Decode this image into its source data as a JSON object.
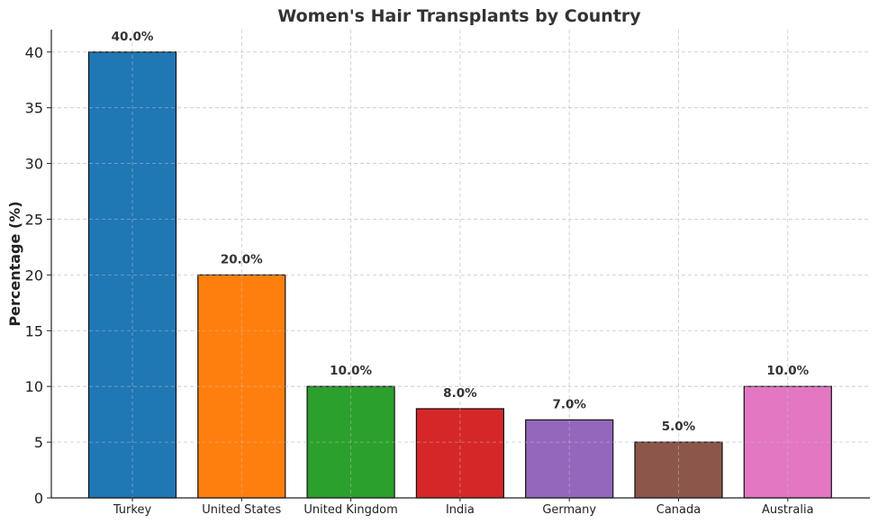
{
  "chart_data": {
    "type": "bar",
    "title": "Women's Hair Transplants by Country",
    "xlabel": "",
    "ylabel": "Percentage (%)",
    "categories": [
      "Turkey",
      "United States",
      "United Kingdom",
      "India",
      "Germany",
      "Canada",
      "Australia"
    ],
    "values": [
      40,
      20,
      10,
      8,
      7,
      5,
      10
    ],
    "value_labels": [
      "40.0%",
      "20.0%",
      "10.0%",
      "8.0%",
      "7.0%",
      "5.0%",
      "10.0%"
    ],
    "colors": [
      "#1f77b4",
      "#ff7f0e",
      "#2ca02c",
      "#d62728",
      "#9467bd",
      "#8c564b",
      "#e377c2"
    ],
    "ylim": [
      0,
      42
    ],
    "yticks": [
      0,
      5,
      10,
      15,
      20,
      25,
      30,
      35,
      40
    ],
    "grid": true,
    "legend": "none"
  }
}
